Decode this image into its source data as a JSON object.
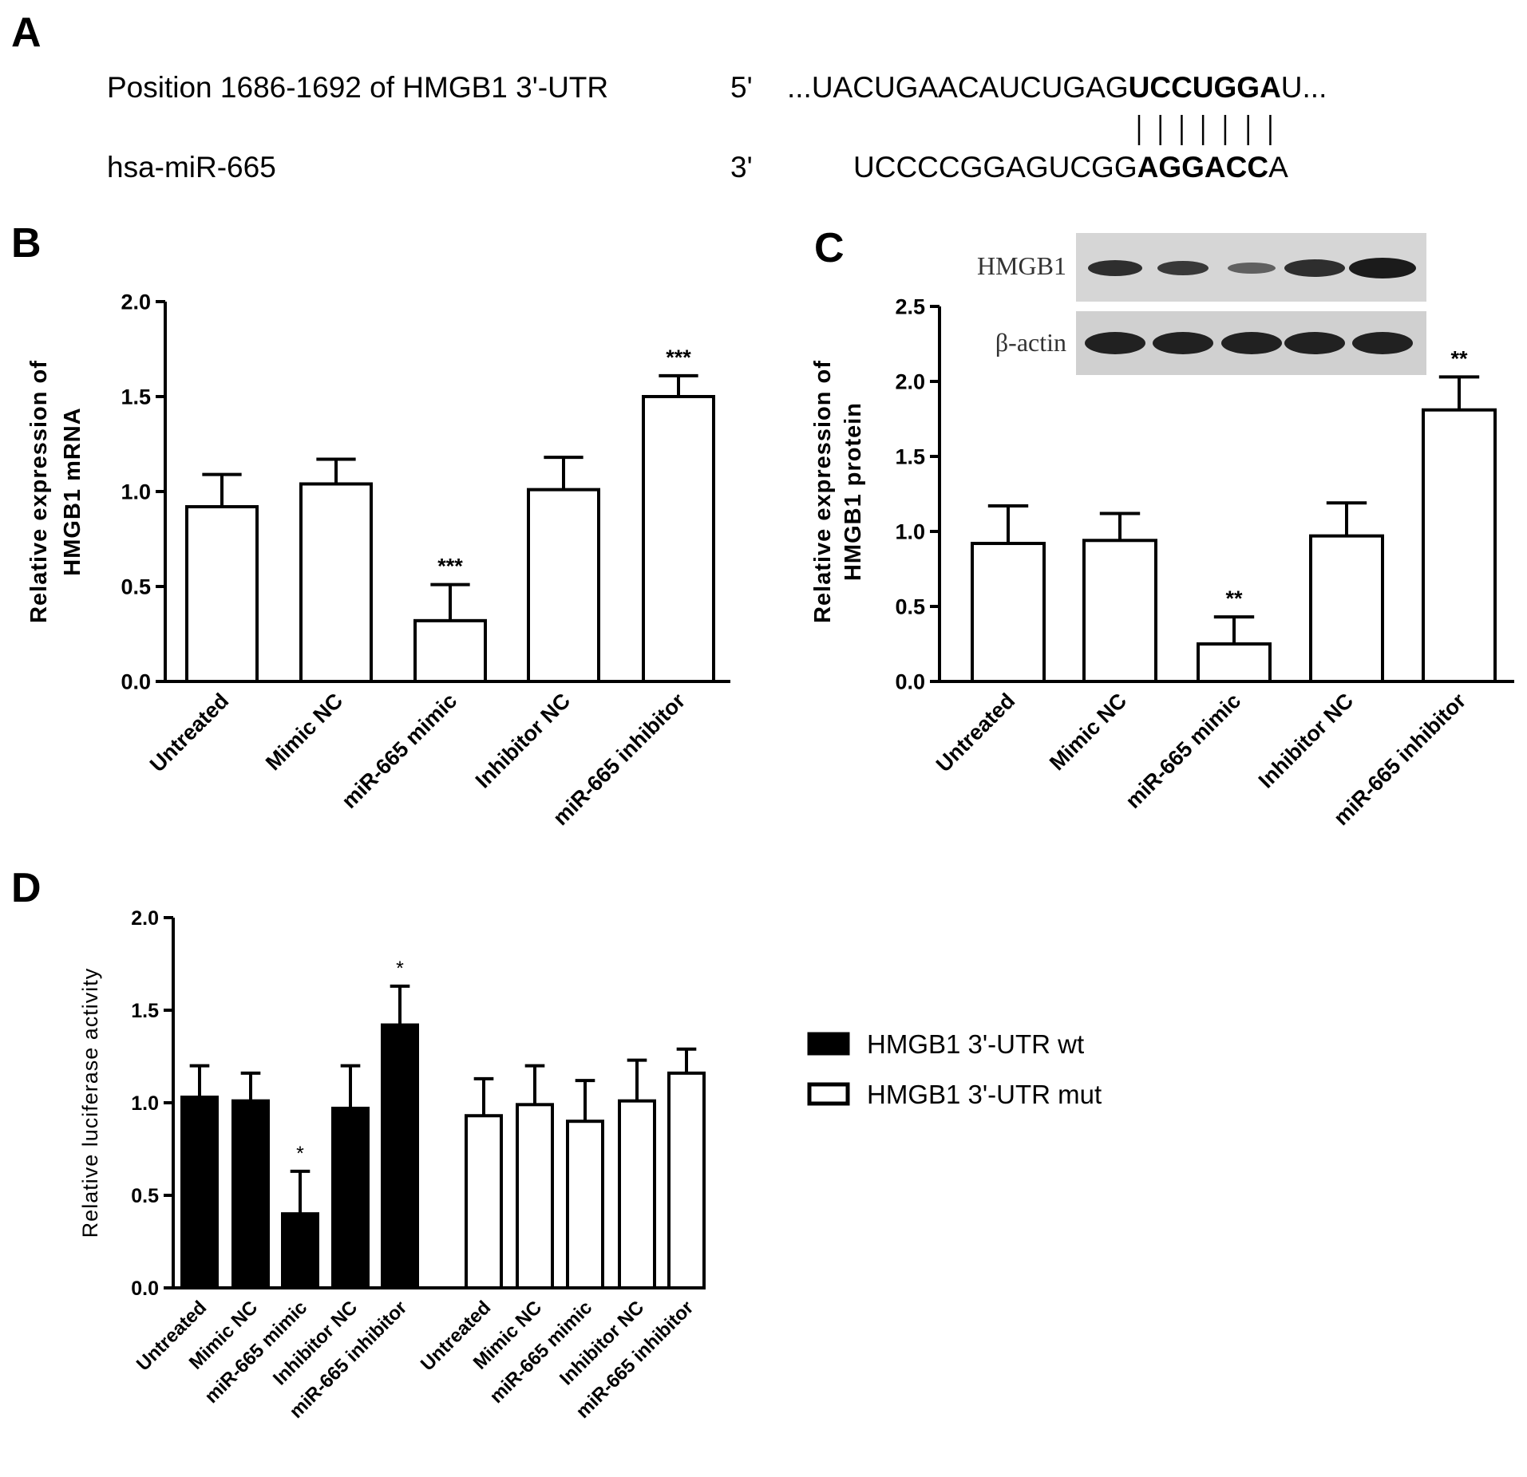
{
  "panel_labels": [
    "A",
    "B",
    "C",
    "D"
  ],
  "alignment": {
    "rows": [
      {
        "label": "Position 1686-1692 of HMGB1 3'-UTR",
        "end": "5'",
        "sequence": [
          "...UACUGAACAUCUGAG",
          "UCCUGGA",
          "U..."
        ]
      },
      {
        "label": "hsa-miR-665",
        "end": "3'",
        "sequence": [
          "UCCCCGGAGUCGG",
          "AGGACC",
          "A"
        ]
      }
    ]
  },
  "chart_data": [
    {
      "type": "bar",
      "categories": [
        "Untreated",
        "Mimic NC",
        "miR-665 mimic",
        "Inhibitor NC",
        "miR-665 inhibitor"
      ],
      "values": [
        0.92,
        1.04,
        0.32,
        1.01,
        1.5
      ],
      "errors": [
        0.17,
        0.13,
        0.19,
        0.17,
        0.11
      ],
      "significance": [
        null,
        null,
        "***",
        null,
        "***"
      ],
      "color": "#ffffff",
      "ylim": [
        0,
        2
      ],
      "yticks": [
        {
          "value": 0,
          "label": "0.0"
        },
        0.5,
        {
          "value": 1,
          "label": "1.0"
        },
        1.5,
        {
          "value": 2,
          "label": "2.0"
        }
      ],
      "y_label": [
        "Relative expression of",
        "HMGB1 mRNA"
      ]
    },
    {
      "type": "bar",
      "categories": [
        "Untreated",
        "Mimic NC",
        "miR-665 mimic",
        "Inhibitor NC",
        "miR-665 inhibitor"
      ],
      "values": [
        0.92,
        0.94,
        0.25,
        0.97,
        1.81
      ],
      "errors": [
        0.25,
        0.18,
        0.18,
        0.22,
        0.22
      ],
      "significance": [
        null,
        null,
        "**",
        null,
        "**"
      ],
      "color": "#ffffff",
      "ylim": [
        0,
        2.5
      ],
      "yticks": [
        {
          "value": 0,
          "label": "0.0"
        },
        0.5,
        {
          "value": 1,
          "label": "1.0"
        },
        1.5,
        {
          "value": 2,
          "label": "2.0"
        },
        2.5
      ],
      "y_label": [
        "Relative expression of",
        "HMGB1 protein"
      ],
      "blot": {
        "labels": [
          "HMGB1",
          "β-actin"
        ]
      }
    },
    {
      "type": "bar",
      "categories": [
        "Untreated",
        "Mimic NC",
        "miR-665 mimic",
        "Inhibitor NC",
        "miR-665 inhibitor"
      ],
      "series": [
        {
          "name": "HMGB1 3'-UTR wt",
          "color": "#000000",
          "values": [
            1.03,
            1.01,
            0.4,
            0.97,
            1.42
          ],
          "errors": [
            0.17,
            0.15,
            0.23,
            0.23,
            0.21
          ],
          "significance": [
            null,
            null,
            "*",
            null,
            "*"
          ]
        },
        {
          "name": "HMGB1 3'-UTR mut",
          "color": "#ffffff",
          "values": [
            0.93,
            0.99,
            0.9,
            1.01,
            1.16
          ],
          "errors": [
            0.2,
            0.21,
            0.22,
            0.22,
            0.13
          ]
        }
      ],
      "ylim": [
        0,
        2
      ],
      "yticks": [
        {
          "value": 0,
          "label": "0.0"
        },
        0.5,
        {
          "value": 1,
          "label": "1.0"
        },
        1.5,
        {
          "value": 2,
          "label": "2.0"
        }
      ],
      "y_label": "Relative luciferase activity",
      "legend": "right"
    }
  ]
}
